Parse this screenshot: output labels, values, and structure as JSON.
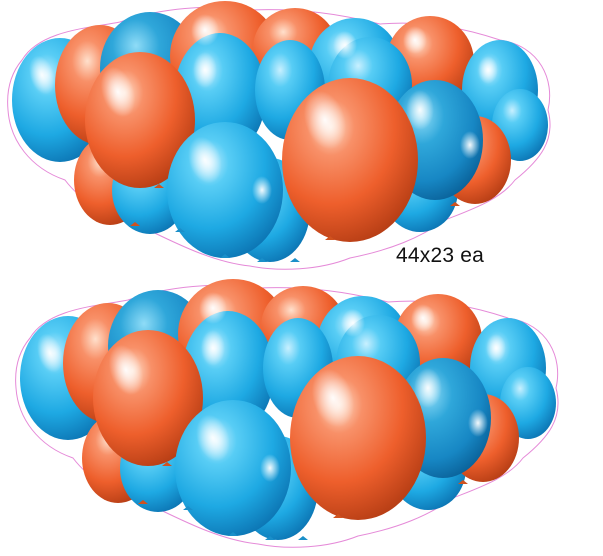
{
  "product": {
    "size_label": "44x23 ea"
  },
  "colors": {
    "orange": "#f26a36",
    "blue": "#2ab3e8",
    "cut_line": "#e58ad8"
  },
  "clusters": [
    "top-balloon-cluster",
    "bottom-balloon-cluster"
  ]
}
